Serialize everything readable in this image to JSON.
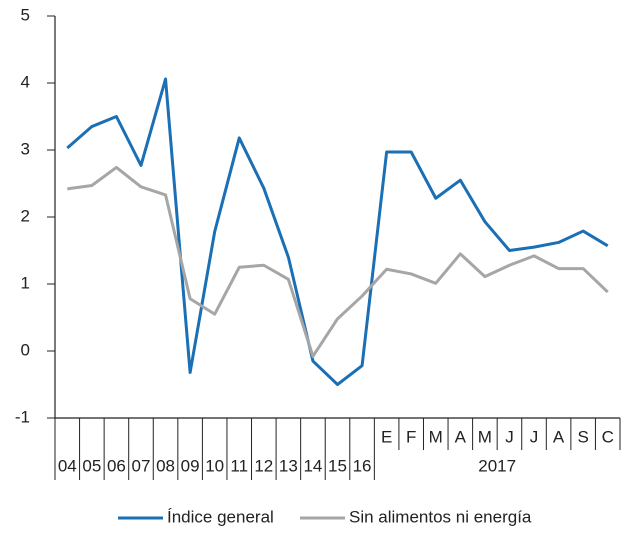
{
  "chart_data": {
    "type": "line",
    "categories": [
      "04",
      "05",
      "06",
      "07",
      "08",
      "09",
      "10",
      "11",
      "12",
      "13",
      "14",
      "15",
      "16",
      "E",
      "F",
      "M",
      "A",
      "M",
      "J",
      "J",
      "A",
      "S",
      "C"
    ],
    "x_groups": [
      {
        "label": "2017",
        "from": 13,
        "to": 22
      }
    ],
    "series": [
      {
        "name": "Índice general",
        "color": "#1a6fb5",
        "values": [
          3.03,
          3.35,
          3.5,
          2.77,
          4.06,
          -0.32,
          1.78,
          3.18,
          2.43,
          1.4,
          -0.15,
          -0.5,
          -0.22,
          2.97,
          2.97,
          2.28,
          2.55,
          1.93,
          1.5,
          1.55,
          1.62,
          1.79,
          1.57
        ]
      },
      {
        "name": "Sin alimentos ni energía",
        "color": "#a6a6a6",
        "values": [
          2.42,
          2.47,
          2.74,
          2.45,
          2.33,
          0.78,
          0.55,
          1.25,
          1.28,
          1.07,
          -0.08,
          0.48,
          0.82,
          1.22,
          1.15,
          1.01,
          1.45,
          1.11,
          1.28,
          1.42,
          1.23,
          1.23,
          0.88
        ]
      }
    ],
    "ylim": [
      -1,
      5
    ],
    "yticks": [
      -1,
      0,
      1,
      2,
      3,
      4,
      5
    ],
    "legend": "bottom"
  }
}
